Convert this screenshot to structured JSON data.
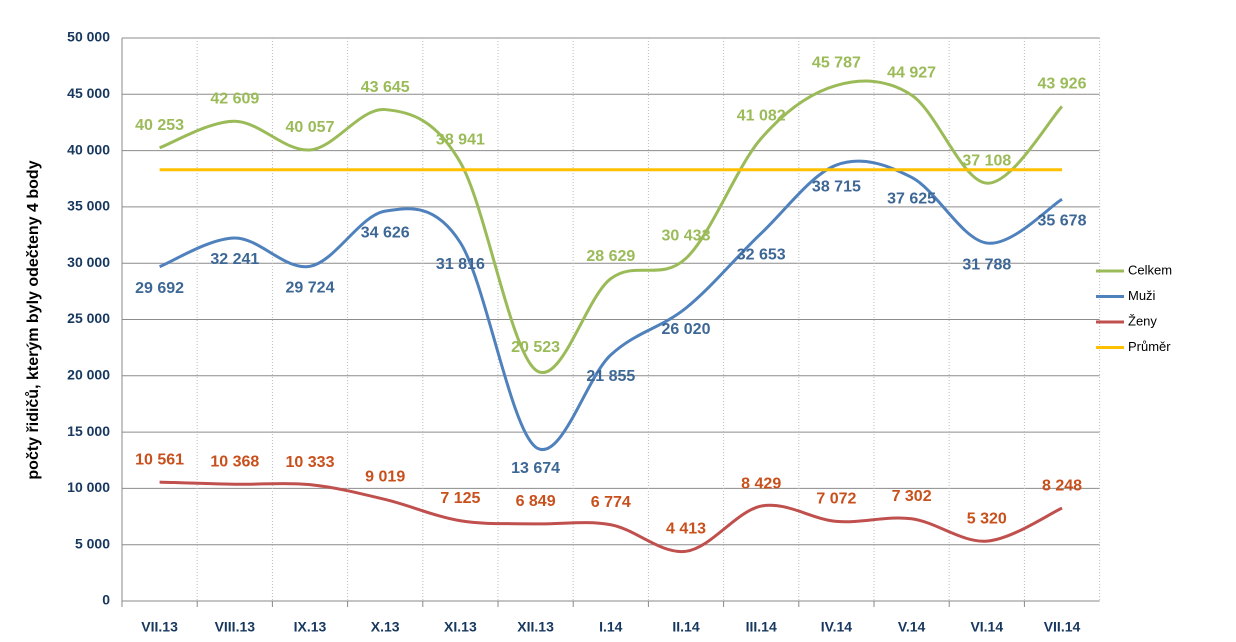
{
  "chart_data": {
    "type": "line",
    "y_axis_label": "počty řidičů, kterým byly odečteny 4 body",
    "categories": [
      "VII.13",
      "VIII.13",
      "IX.13",
      "X.13",
      "XI.13",
      "XII.13",
      "I.14",
      "II.14",
      "III.14",
      "IV.14",
      "V.14",
      "VI.14",
      "VII.14"
    ],
    "series": [
      {
        "name": "Celkem",
        "color": "#9bbb59",
        "label_color": "#9bbb59",
        "smooth": true,
        "values": [
          40253,
          42609,
          40057,
          43645,
          38941,
          20523,
          28629,
          30433,
          41082,
          45787,
          44927,
          37108,
          43926
        ],
        "value_labels": [
          "40 253",
          "42 609",
          "40 057",
          "43 645",
          "38 941",
          "20 523",
          "28 629",
          "30 433",
          "41 082",
          "45 787",
          "44 927",
          "37 108",
          "43 926"
        ]
      },
      {
        "name": "Muži",
        "color": "#4f81bd",
        "label_color": "#3d6795",
        "smooth": true,
        "values": [
          29692,
          32241,
          29724,
          34626,
          31816,
          13674,
          21855,
          26020,
          32653,
          38715,
          37625,
          31788,
          35678
        ],
        "value_labels": [
          "29 692",
          "32 241",
          "29 724",
          "34 626",
          "31 816",
          "13 674",
          "21 855",
          "26 020",
          "32 653",
          "38 715",
          "37 625",
          "31 788",
          "35 678"
        ]
      },
      {
        "name": "Ženy",
        "color": "#c0504d",
        "label_color": "#c8501c",
        "smooth": true,
        "values": [
          10561,
          10368,
          10333,
          9019,
          7125,
          6849,
          6774,
          4413,
          8429,
          7072,
          7302,
          5320,
          8248
        ],
        "value_labels": [
          "10 561",
          "10 368",
          "10 333",
          "9 019",
          "7 125",
          "6 849",
          "6 774",
          "4 413",
          "8 429",
          "7 072",
          "7 302",
          "5 320",
          "8 248"
        ]
      },
      {
        "name": "Průměr",
        "color": "#ffc000",
        "smooth": false,
        "values": [
          38302,
          38302,
          38302,
          38302,
          38302,
          38302,
          38302,
          38302,
          38302,
          38302,
          38302,
          38302,
          38302
        ]
      }
    ],
    "ylim": [
      0,
      50000
    ],
    "yticks": [
      0,
      {
        "value": 5000,
        "label": "5 000"
      },
      {
        "value": 10000,
        "label": "10 000"
      },
      {
        "value": 15000,
        "label": "15 000"
      },
      {
        "value": 20000,
        "label": "20 000"
      },
      {
        "value": 25000,
        "label": "25 000"
      },
      {
        "value": 30000,
        "label": "30 000"
      },
      {
        "value": 35000,
        "label": "35 000"
      },
      {
        "value": 40000,
        "label": "40 000"
      },
      {
        "value": 45000,
        "label": "45 000"
      },
      {
        "value": 50000,
        "label": "50 000"
      }
    ],
    "grid": true,
    "legend": "right"
  }
}
